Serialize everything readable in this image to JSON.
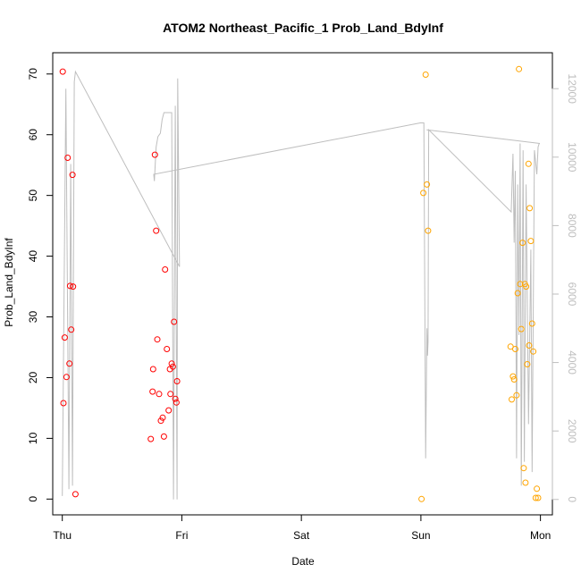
{
  "chart_data": {
    "type": "scatter",
    "title": "ATOM2 Northeast_Pacific_1 Prob_Land_BdyInf",
    "xlabel": "Date",
    "ylabel": "Prob_Land_BdyInf",
    "x_unit": "days since Thu 00:00",
    "x_tick_labels": [
      "Thu",
      "Fri",
      "Sat",
      "Sun",
      "Mon"
    ],
    "x_ticks": [
      0,
      1,
      2,
      3,
      4
    ],
    "xlim": [
      -0.08,
      4.1
    ],
    "ylim": [
      -2.6,
      73.5
    ],
    "y_ticks": [
      0,
      10,
      20,
      30,
      40,
      50,
      60,
      70
    ],
    "right_axis": {
      "ticks": [
        0,
        2000,
        4000,
        6000,
        8000,
        10000,
        12000
      ],
      "range": [
        -450,
        13050
      ],
      "color": "#bebebe"
    },
    "grid": false,
    "series": [
      {
        "name": "",
        "color": "#ff0000",
        "marker": "open-circle",
        "points": [
          [
            0.004,
            70.4
          ],
          [
            0.01,
            15.8
          ],
          [
            0.02,
            26.6
          ],
          [
            0.035,
            20.1
          ],
          [
            0.045,
            56.2
          ],
          [
            0.06,
            22.3
          ],
          [
            0.065,
            35.1
          ],
          [
            0.075,
            27.9
          ],
          [
            0.085,
            53.4
          ],
          [
            0.09,
            35.0
          ],
          [
            0.11,
            0.8
          ],
          [
            0.74,
            9.9
          ],
          [
            0.755,
            17.7
          ],
          [
            0.76,
            21.4
          ],
          [
            0.775,
            56.7
          ],
          [
            0.785,
            44.2
          ],
          [
            0.795,
            26.3
          ],
          [
            0.81,
            17.3
          ],
          [
            0.825,
            12.9
          ],
          [
            0.84,
            13.4
          ],
          [
            0.85,
            10.3
          ],
          [
            0.86,
            37.8
          ],
          [
            0.875,
            24.7
          ],
          [
            0.89,
            14.6
          ],
          [
            0.9,
            21.4
          ],
          [
            0.905,
            17.3
          ],
          [
            0.915,
            22.3
          ],
          [
            0.925,
            21.8
          ],
          [
            0.935,
            29.2
          ],
          [
            0.945,
            16.5
          ],
          [
            0.955,
            15.9
          ],
          [
            0.96,
            19.4
          ]
        ]
      },
      {
        "name": "",
        "color": "#ffa500",
        "marker": "open-circle",
        "points": [
          [
            3.005,
            0.0
          ],
          [
            3.02,
            50.4
          ],
          [
            3.04,
            69.9
          ],
          [
            3.05,
            51.8
          ],
          [
            3.06,
            44.2
          ],
          [
            3.75,
            25.1
          ],
          [
            3.76,
            16.4
          ],
          [
            3.77,
            20.2
          ],
          [
            3.78,
            19.7
          ],
          [
            3.79,
            24.7
          ],
          [
            3.8,
            17.1
          ],
          [
            3.81,
            33.9
          ],
          [
            3.82,
            70.8
          ],
          [
            3.83,
            35.4
          ],
          [
            3.84,
            28.0
          ],
          [
            3.85,
            42.2
          ],
          [
            3.86,
            5.1
          ],
          [
            3.87,
            35.4
          ],
          [
            3.875,
            2.7
          ],
          [
            3.88,
            35.0
          ],
          [
            3.89,
            22.2
          ],
          [
            3.9,
            55.2
          ],
          [
            3.905,
            25.3
          ],
          [
            3.91,
            47.9
          ],
          [
            3.92,
            42.5
          ],
          [
            3.93,
            28.9
          ],
          [
            3.94,
            24.3
          ],
          [
            3.96,
            0.2
          ],
          [
            3.97,
            1.7
          ],
          [
            3.98,
            0.2
          ]
        ]
      }
    ],
    "line_series": {
      "name": "",
      "axis": "right",
      "color": "#bebebe",
      "points": [
        [
          0.0,
          100
        ],
        [
          0.03,
          12000
        ],
        [
          0.055,
          300
        ],
        [
          0.07,
          9800
        ],
        [
          0.085,
          400
        ],
        [
          0.1,
          12200
        ],
        [
          0.11,
          12500
        ],
        [
          0.98,
          6800
        ],
        [
          0.965,
          12300
        ],
        [
          0.96,
          0
        ],
        [
          0.945,
          11500
        ],
        [
          0.93,
          0
        ],
        [
          0.915,
          11300
        ],
        [
          0.9,
          11300
        ],
        [
          0.85,
          11300
        ],
        [
          0.835,
          11100
        ],
        [
          0.82,
          10700
        ],
        [
          0.8,
          10600
        ],
        [
          0.785,
          10300
        ],
        [
          0.77,
          9300
        ],
        [
          0.765,
          9500
        ],
        [
          2.995,
          11000
        ],
        [
          3.025,
          11000
        ],
        [
          3.04,
          1200
        ],
        [
          3.05,
          5000
        ],
        [
          3.055,
          4200
        ],
        [
          3.06,
          4600
        ],
        [
          3.065,
          10800
        ],
        [
          3.755,
          8400
        ],
        [
          3.77,
          10100
        ],
        [
          3.78,
          7500
        ],
        [
          3.79,
          9600
        ],
        [
          3.8,
          1200
        ],
        [
          3.81,
          9200
        ],
        [
          3.82,
          4800
        ],
        [
          3.83,
          10400
        ],
        [
          3.84,
          400
        ],
        [
          3.855,
          10200
        ],
        [
          3.865,
          1100
        ],
        [
          3.88,
          9200
        ],
        [
          3.9,
          2200
        ],
        [
          3.92,
          7300
        ],
        [
          3.93,
          800
        ],
        [
          3.95,
          10200
        ],
        [
          3.97,
          9500
        ],
        [
          3.98,
          10300
        ],
        [
          3.99,
          10400
        ],
        [
          3.995,
          10400
        ],
        [
          3.048,
          10800
        ]
      ]
    }
  }
}
